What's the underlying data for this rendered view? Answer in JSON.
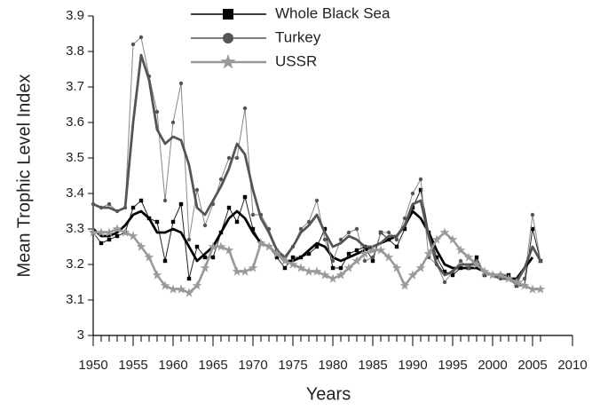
{
  "chart_data": {
    "type": "line",
    "xlabel": "Years",
    "ylabel": "Mean Trophic Level Index",
    "xlim": [
      1950,
      2010
    ],
    "ylim": [
      3,
      3.9
    ],
    "xticks": [
      1950,
      1955,
      1960,
      1965,
      1970,
      1975,
      1980,
      1985,
      1990,
      1995,
      2000,
      2005,
      2010
    ],
    "yticks": [
      3,
      3.1,
      3.2,
      3.3,
      3.4,
      3.5,
      3.6,
      3.7,
      3.8,
      3.9
    ],
    "legend": "top",
    "x": [
      1950,
      1951,
      1952,
      1953,
      1954,
      1955,
      1956,
      1957,
      1958,
      1959,
      1960,
      1961,
      1962,
      1963,
      1964,
      1965,
      1966,
      1967,
      1968,
      1969,
      1970,
      1971,
      1972,
      1973,
      1974,
      1975,
      1976,
      1977,
      1978,
      1979,
      1980,
      1981,
      1982,
      1983,
      1984,
      1985,
      1986,
      1987,
      1988,
      1989,
      1990,
      1991,
      1992,
      1993,
      1994,
      1995,
      1996,
      1997,
      1998,
      1999,
      2000,
      2001,
      2002,
      2003,
      2004,
      2005,
      2006
    ],
    "series": [
      {
        "name": "Whole Black Sea",
        "color": "#000000",
        "marker": "square",
        "values": [
          3.29,
          3.26,
          3.27,
          3.28,
          3.29,
          3.36,
          3.38,
          3.33,
          3.32,
          3.21,
          3.32,
          3.37,
          3.16,
          3.25,
          3.22,
          3.22,
          3.29,
          3.36,
          3.32,
          3.39,
          3.3,
          3.26,
          3.25,
          3.22,
          3.19,
          3.22,
          3.22,
          3.23,
          3.25,
          3.3,
          3.19,
          3.19,
          3.23,
          3.24,
          3.25,
          3.21,
          3.29,
          3.27,
          3.25,
          3.3,
          3.36,
          3.41,
          3.29,
          3.22,
          3.18,
          3.17,
          3.19,
          3.19,
          3.22,
          3.17,
          3.17,
          3.17,
          3.17,
          3.14,
          3.14,
          3.3,
          3.21
        ],
        "trend": [
          3.3,
          3.28,
          3.28,
          3.29,
          3.31,
          3.34,
          3.35,
          3.33,
          3.29,
          3.29,
          3.3,
          3.29,
          3.25,
          3.21,
          3.23,
          3.25,
          3.29,
          3.33,
          3.35,
          3.33,
          3.29,
          3.26,
          3.25,
          3.23,
          3.21,
          3.21,
          3.22,
          3.24,
          3.26,
          3.25,
          3.22,
          3.21,
          3.22,
          3.23,
          3.24,
          3.25,
          3.26,
          3.27,
          3.28,
          3.31,
          3.35,
          3.33,
          3.29,
          3.24,
          3.2,
          3.19,
          3.19,
          3.19,
          3.19,
          3.18,
          3.17,
          3.17,
          3.16,
          3.16,
          3.19,
          3.22,
          null
        ]
      },
      {
        "name": "Turkey",
        "color": "#555555",
        "marker": "circle",
        "values": [
          3.37,
          3.36,
          3.37,
          3.35,
          3.36,
          3.82,
          3.84,
          3.73,
          3.63,
          3.38,
          3.6,
          3.71,
          3.27,
          3.41,
          3.31,
          3.37,
          3.44,
          3.5,
          3.5,
          3.64,
          3.34,
          3.34,
          3.3,
          3.24,
          3.21,
          3.25,
          3.3,
          3.32,
          3.38,
          3.27,
          3.21,
          3.27,
          3.29,
          3.3,
          3.21,
          3.22,
          3.29,
          3.29,
          3.27,
          3.33,
          3.4,
          3.44,
          3.22,
          3.2,
          3.15,
          3.18,
          3.21,
          3.19,
          3.21,
          3.17,
          3.17,
          3.16,
          3.16,
          3.14,
          3.16,
          3.34,
          3.21
        ],
        "trend": [
          3.37,
          3.36,
          3.36,
          3.35,
          3.36,
          3.6,
          3.79,
          3.72,
          3.58,
          3.54,
          3.56,
          3.55,
          3.48,
          3.36,
          3.34,
          3.38,
          3.42,
          3.47,
          3.54,
          3.51,
          3.41,
          3.33,
          3.29,
          3.24,
          3.22,
          3.25,
          3.29,
          3.31,
          3.34,
          3.29,
          3.25,
          3.26,
          3.28,
          3.27,
          3.25,
          3.25,
          3.26,
          3.28,
          3.28,
          3.31,
          3.37,
          3.38,
          3.28,
          3.2,
          3.17,
          3.18,
          3.2,
          3.2,
          3.2,
          3.18,
          3.17,
          3.16,
          3.16,
          3.15,
          3.19,
          3.25,
          3.21
        ]
      },
      {
        "name": "USSR",
        "color": "#999999",
        "marker": "star",
        "values": [
          3.29,
          3.29,
          3.29,
          3.3,
          3.29,
          3.28,
          3.25,
          3.22,
          3.17,
          3.14,
          3.13,
          3.13,
          3.12,
          3.14,
          3.19,
          3.25,
          3.25,
          3.24,
          3.18,
          3.18,
          3.19,
          3.26,
          3.25,
          3.23,
          3.21,
          3.2,
          3.19,
          3.18,
          3.18,
          3.17,
          3.16,
          3.17,
          3.19,
          3.21,
          3.23,
          3.24,
          3.24,
          3.22,
          3.19,
          3.14,
          3.17,
          3.19,
          3.23,
          3.27,
          3.29,
          3.27,
          3.24,
          3.22,
          3.2,
          3.18,
          3.17,
          3.17,
          3.16,
          3.15,
          3.14,
          3.13,
          3.13
        ]
      }
    ]
  }
}
